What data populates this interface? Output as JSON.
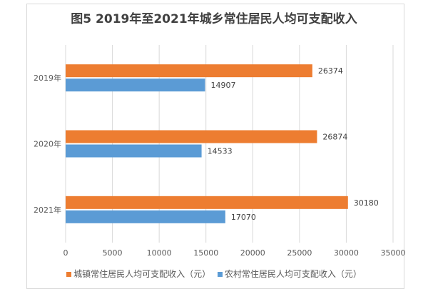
{
  "chart_data": {
    "type": "bar",
    "orientation": "horizontal",
    "title": "图5 2019年至2021年城乡常住居民人均可支配收入",
    "categories": [
      "2019年",
      "2020年",
      "2021年"
    ],
    "series": [
      {
        "name": "城镇常住居民人均可支配收入（元）",
        "color": "#ED7D31",
        "values": [
          26374,
          26874,
          30180
        ]
      },
      {
        "name": "农村常住居民人均可支配收入（元）",
        "color": "#5B9BD5",
        "values": [
          14907,
          14533,
          17070
        ]
      }
    ],
    "xticks": [
      "0",
      "5000",
      "10000",
      "15000",
      "20000",
      "25000",
      "30000",
      "35000"
    ],
    "xlim": [
      0,
      35000
    ],
    "grid": true,
    "legend": "bottom"
  }
}
